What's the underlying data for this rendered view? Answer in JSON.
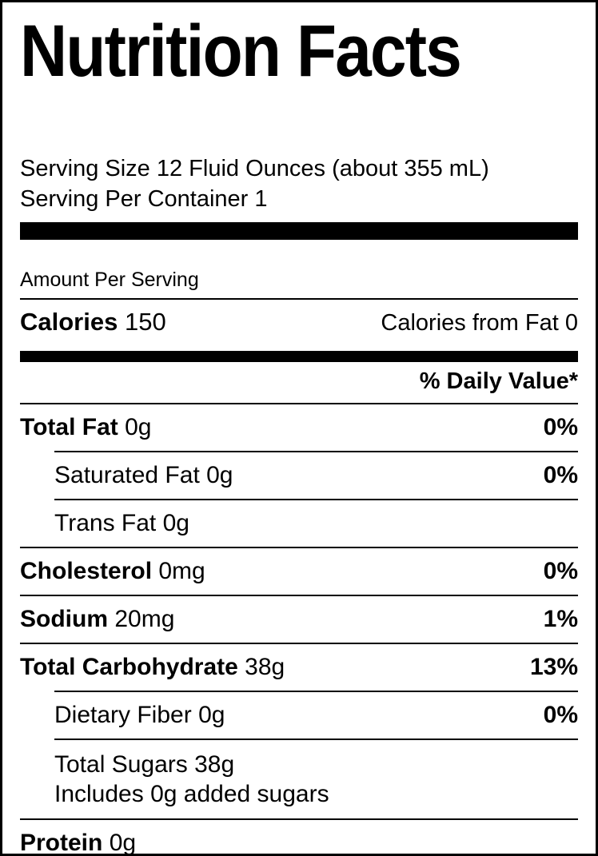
{
  "colors": {
    "ink": "#000000",
    "paper": "#ffffff"
  },
  "label": {
    "title": "Nutrition Facts",
    "serving_size_line": "Serving Size 12 Fluid Ounces (about 355 mL)",
    "servings_per_container_line": "Serving Per Container 1",
    "amount_per_serving": "Amount Per Serving",
    "calories_label": "Calories",
    "calories_value": "150",
    "calories_from_fat_label": "Calories from Fat",
    "calories_from_fat_value": "0",
    "daily_value_header": "% Daily Value*",
    "rows": [
      {
        "name": "Total Fat",
        "amount": "0g",
        "daily_value": "0%"
      },
      {
        "name": "Saturated Fat",
        "amount": "0g",
        "daily_value": "0%"
      },
      {
        "name": "Trans Fat",
        "amount": "0g",
        "daily_value": ""
      },
      {
        "name": "Cholesterol",
        "amount": "0mg",
        "daily_value": "0%"
      },
      {
        "name": "Sodium",
        "amount": "20mg",
        "daily_value": "1%"
      },
      {
        "name": "Total Carbohydrate",
        "amount": "38g",
        "daily_value": "13%"
      },
      {
        "name": "Dietary Fiber",
        "amount": "0g",
        "daily_value": "0%"
      },
      {
        "name": "Total Sugars",
        "amount": "38g",
        "sub_line": "Includes 0g added sugars",
        "daily_value": ""
      },
      {
        "name": "Protein",
        "amount": "0g",
        "daily_value": ""
      }
    ]
  }
}
